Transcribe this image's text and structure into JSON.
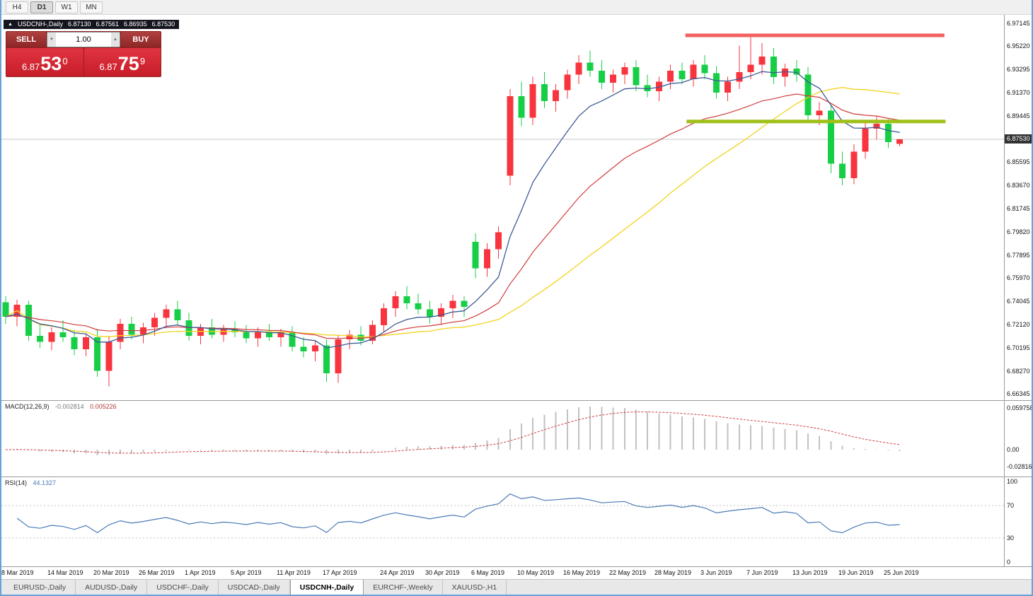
{
  "toolbar": {
    "timeframes": [
      {
        "label": "H4",
        "active": false
      },
      {
        "label": "D1",
        "active": true
      },
      {
        "label": "W1",
        "active": false
      },
      {
        "label": "MN",
        "active": false
      }
    ]
  },
  "symbol_bar": {
    "title": "USDCNH-,Daily",
    "ohlc": {
      "o": "6.87130",
      "h": "6.87561",
      "l": "6.86935",
      "c": "6.87530"
    }
  },
  "trade_panel": {
    "sell_label": "SELL",
    "buy_label": "BUY",
    "volume": "1.00",
    "sell_price": {
      "small": "6.87",
      "big": "53",
      "sup": "0"
    },
    "buy_price": {
      "small": "6.87",
      "big": "75",
      "sup": "9"
    }
  },
  "chart_data": {
    "type": "candlestick",
    "symbol": "USDCNH-",
    "timeframe": "Daily",
    "current_price": 6.8753,
    "colors": {
      "bull": "#f8353e",
      "bear": "#17cf46",
      "price_line": "#c9c9c9",
      "background": "#ffffff"
    },
    "candles": [
      [
        6.74,
        6.745,
        6.722,
        6.728
      ],
      [
        6.728,
        6.742,
        6.72,
        6.738
      ],
      [
        6.738,
        6.741,
        6.708,
        6.712
      ],
      [
        6.712,
        6.722,
        6.702,
        6.707
      ],
      [
        6.707,
        6.719,
        6.7,
        6.715
      ],
      [
        6.715,
        6.725,
        6.707,
        6.711
      ],
      [
        6.711,
        6.717,
        6.696,
        6.701
      ],
      [
        6.701,
        6.714,
        6.695,
        6.711
      ],
      [
        6.711,
        6.718,
        6.678,
        6.683
      ],
      [
        6.683,
        6.712,
        6.67,
        6.707
      ],
      [
        6.707,
        6.726,
        6.701,
        6.722
      ],
      [
        6.722,
        6.728,
        6.709,
        6.713
      ],
      [
        6.713,
        6.723,
        6.706,
        6.719
      ],
      [
        6.719,
        6.731,
        6.712,
        6.727
      ],
      [
        6.727,
        6.738,
        6.719,
        6.734
      ],
      [
        6.734,
        6.741,
        6.721,
        6.725
      ],
      [
        6.725,
        6.731,
        6.708,
        6.712
      ],
      [
        6.712,
        6.722,
        6.705,
        6.719
      ],
      [
        6.719,
        6.726,
        6.71,
        6.713
      ],
      [
        6.713,
        6.721,
        6.707,
        6.718
      ],
      [
        6.718,
        6.724,
        6.711,
        6.715
      ],
      [
        6.715,
        6.721,
        6.706,
        6.71
      ],
      [
        6.71,
        6.719,
        6.703,
        6.716
      ],
      [
        6.716,
        6.722,
        6.708,
        6.711
      ],
      [
        6.711,
        6.718,
        6.703,
        6.715
      ],
      [
        6.715,
        6.72,
        6.699,
        6.703
      ],
      [
        6.703,
        6.711,
        6.694,
        6.699
      ],
      [
        6.699,
        6.708,
        6.691,
        6.704
      ],
      [
        6.704,
        6.709,
        6.674,
        6.681
      ],
      [
        6.681,
        6.713,
        6.673,
        6.709
      ],
      [
        6.709,
        6.717,
        6.701,
        6.713
      ],
      [
        6.713,
        6.72,
        6.704,
        6.708
      ],
      [
        6.708,
        6.725,
        6.705,
        6.721
      ],
      [
        6.721,
        6.739,
        6.715,
        6.735
      ],
      [
        6.735,
        6.749,
        6.728,
        6.745
      ],
      [
        6.745,
        6.753,
        6.734,
        6.739
      ],
      [
        6.739,
        6.747,
        6.73,
        6.734
      ],
      [
        6.734,
        6.741,
        6.722,
        6.728
      ],
      [
        6.728,
        6.739,
        6.721,
        6.735
      ],
      [
        6.735,
        6.746,
        6.727,
        6.741
      ],
      [
        6.741,
        6.745,
        6.728,
        6.736
      ],
      [
        6.79,
        6.797,
        6.76,
        6.768
      ],
      [
        6.768,
        6.789,
        6.761,
        6.784
      ],
      [
        6.784,
        6.803,
        6.776,
        6.798
      ],
      [
        6.845,
        6.917,
        6.837,
        6.911
      ],
      [
        6.911,
        6.923,
        6.886,
        6.893
      ],
      [
        6.893,
        6.927,
        6.887,
        6.921
      ],
      [
        6.921,
        6.931,
        6.901,
        6.907
      ],
      [
        6.907,
        6.921,
        6.898,
        6.916
      ],
      [
        6.916,
        6.933,
        6.909,
        6.929
      ],
      [
        6.929,
        6.945,
        6.921,
        6.939
      ],
      [
        6.939,
        6.949,
        6.927,
        6.932
      ],
      [
        6.932,
        6.941,
        6.917,
        6.922
      ],
      [
        6.922,
        6.933,
        6.914,
        6.929
      ],
      [
        6.929,
        6.939,
        6.921,
        6.935
      ],
      [
        6.935,
        6.941,
        6.915,
        6.92
      ],
      [
        6.92,
        6.929,
        6.91,
        6.915
      ],
      [
        6.915,
        6.927,
        6.907,
        6.923
      ],
      [
        6.923,
        6.937,
        6.917,
        6.932
      ],
      [
        6.932,
        6.939,
        6.921,
        6.925
      ],
      [
        6.925,
        6.941,
        6.919,
        6.937
      ],
      [
        6.937,
        6.945,
        6.925,
        6.93
      ],
      [
        6.93,
        6.936,
        6.909,
        6.914
      ],
      [
        6.914,
        6.927,
        6.907,
        6.923
      ],
      [
        6.923,
        6.953,
        6.917,
        6.931
      ],
      [
        6.931,
        6.961,
        6.925,
        6.937
      ],
      [
        6.937,
        6.955,
        6.929,
        6.944
      ],
      [
        6.944,
        6.951,
        6.921,
        6.927
      ],
      [
        6.927,
        6.938,
        6.919,
        6.934
      ],
      [
        6.934,
        6.941,
        6.923,
        6.929
      ],
      [
        6.929,
        6.935,
        6.89,
        6.895
      ],
      [
        6.895,
        6.906,
        6.887,
        6.899
      ],
      [
        6.899,
        6.904,
        6.847,
        6.855
      ],
      [
        6.855,
        6.865,
        6.837,
        6.843
      ],
      [
        6.843,
        6.871,
        6.838,
        6.865
      ],
      [
        6.865,
        6.89,
        6.859,
        6.884
      ],
      [
        6.884,
        6.894,
        6.875,
        6.888
      ],
      [
        6.888,
        6.892,
        6.868,
        6.873
      ],
      [
        6.8713,
        6.87561,
        6.86935,
        6.8753
      ]
    ],
    "moving_averages": [
      {
        "name": "ma-yellow-slow",
        "period": 30,
        "method": "sma",
        "color": "#f0d41e",
        "width": 1.3
      },
      {
        "name": "ma-red-mid",
        "period": 21,
        "method": "ema",
        "color": "#d23c3c",
        "width": 1.2
      },
      {
        "name": "ma-blue-fast",
        "period": 8,
        "method": "ema",
        "color": "#3c5a96",
        "width": 1.3
      }
    ],
    "objects": [
      {
        "name": "resistance-trendline",
        "price": 6.9615,
        "from_index": 59.3,
        "to_index": 81.9,
        "color": "#f2605f",
        "width": 5
      },
      {
        "name": "support-trendline",
        "price": 6.89,
        "from_index": 59.4,
        "to_index": 82.0,
        "color": "#9fc018",
        "width": 5
      }
    ]
  },
  "price_axis": {
    "labels": [
      "6.97145",
      "6.95220",
      "6.93295",
      "6.91370",
      "6.89445",
      "6.85595",
      "6.83670",
      "6.81745",
      "6.79820",
      "6.77895",
      "6.75970",
      "6.74045",
      "6.72120",
      "6.70195",
      "6.68270",
      "6.66345"
    ],
    "current_price": "6.87530"
  },
  "x_axis": {
    "labels": [
      "8 Mar 2019",
      "14 Mar 2019",
      "20 Mar 2019",
      "26 Mar 2019",
      "1 Apr 2019",
      "5 Apr 2019",
      "11 Apr 2019",
      "17 Apr 2019",
      "24 Apr 2019",
      "30 Apr 2019",
      "6 May 2019",
      "10 May 2019",
      "16 May 2019",
      "22 May 2019",
      "28 May 2019",
      "3 Jun 2019",
      "7 Jun 2019",
      "13 Jun 2019",
      "19 Jun 2019",
      "25 Jun 2019"
    ],
    "indices": [
      0,
      4,
      8,
      12,
      16,
      20,
      24,
      28,
      33,
      37,
      41,
      45,
      49,
      53,
      57,
      61,
      65,
      69,
      73,
      77
    ]
  },
  "macd_panel": {
    "title": "MACD(12,26,9)",
    "value_main": "-0.002814",
    "value_signal": "0.005226",
    "axis_labels": [
      "0.059758",
      "0.00",
      "-0.02816"
    ],
    "params": {
      "fast": 12,
      "slow": 26,
      "signal": 9
    }
  },
  "rsi_panel": {
    "title": "RSI(14)",
    "value": "44.1327",
    "period": 14,
    "levels": [
      70,
      30
    ],
    "axis_labels": [
      "100",
      "70",
      "30",
      "0"
    ]
  },
  "tabs": [
    {
      "label": "EURUSD-,Daily",
      "active": false
    },
    {
      "label": "AUDUSD-,Daily",
      "active": false
    },
    {
      "label": "USDCHF-,Daily",
      "active": false
    },
    {
      "label": "USDCAD-,Daily",
      "active": false
    },
    {
      "label": "USDCNH-,Daily",
      "active": true
    },
    {
      "label": "EURCHF-,Weekly",
      "active": false
    },
    {
      "label": "XAUUSD-,H1",
      "active": false
    }
  ]
}
